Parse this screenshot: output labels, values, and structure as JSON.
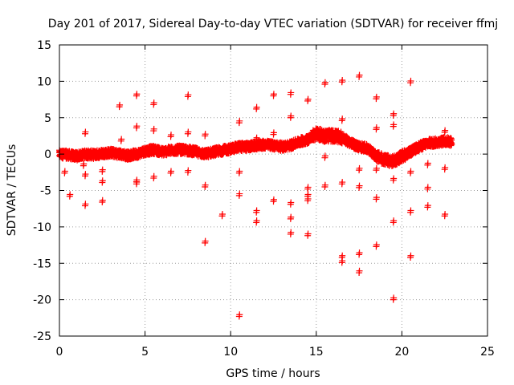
{
  "chart_data": {
    "type": "scatter",
    "title": "Day 201 of 2017, Sidereal Day-to-day VTEC variation (SDTVAR) for receiver ffmj",
    "xlabel": "GPS time / hours",
    "ylabel": "SDTVAR / TECUs",
    "xlim": [
      0,
      25
    ],
    "ylim": [
      -25,
      15
    ],
    "xticks": [
      0,
      5,
      10,
      15,
      20,
      25
    ],
    "yticks": [
      15,
      10,
      5,
      0,
      -5,
      -10,
      -15,
      -20,
      -25
    ],
    "grid": true,
    "marker": "plus",
    "color": "#ff0000",
    "series": [
      {
        "name": "SDTVAR",
        "trend": [
          [
            0.0,
            0.0
          ],
          [
            0.5,
            -0.1
          ],
          [
            1.0,
            -0.3
          ],
          [
            1.5,
            0.0
          ],
          [
            2.0,
            -0.1
          ],
          [
            2.5,
            0.1
          ],
          [
            3.0,
            0.2
          ],
          [
            3.5,
            0.0
          ],
          [
            4.0,
            -0.2
          ],
          [
            4.5,
            0.0
          ],
          [
            5.0,
            0.4
          ],
          [
            5.5,
            0.6
          ],
          [
            6.0,
            0.3
          ],
          [
            6.5,
            0.5
          ],
          [
            7.0,
            0.6
          ],
          [
            7.5,
            0.5
          ],
          [
            8.0,
            0.3
          ],
          [
            8.5,
            0.0
          ],
          [
            9.0,
            0.3
          ],
          [
            9.5,
            0.5
          ],
          [
            10.0,
            0.7
          ],
          [
            10.5,
            1.0
          ],
          [
            11.0,
            1.0
          ],
          [
            11.5,
            1.2
          ],
          [
            12.0,
            1.3
          ],
          [
            12.5,
            1.2
          ],
          [
            13.0,
            1.0
          ],
          [
            13.5,
            1.2
          ],
          [
            14.0,
            1.7
          ],
          [
            14.5,
            2.0
          ],
          [
            15.0,
            2.8
          ],
          [
            15.5,
            2.5
          ],
          [
            16.0,
            2.5
          ],
          [
            16.5,
            2.3
          ],
          [
            17.0,
            1.5
          ],
          [
            17.5,
            1.0
          ],
          [
            18.0,
            0.8
          ],
          [
            18.5,
            -0.3
          ],
          [
            19.0,
            -0.8
          ],
          [
            19.5,
            -1.0
          ],
          [
            20.0,
            -0.3
          ],
          [
            20.5,
            0.3
          ],
          [
            21.0,
            1.0
          ],
          [
            21.5,
            1.5
          ],
          [
            22.0,
            1.6
          ],
          [
            22.5,
            1.8
          ],
          [
            22.9,
            1.7
          ]
        ],
        "outliers": [
          [
            0.3,
            -2.6
          ],
          [
            0.6,
            -5.8
          ],
          [
            1.4,
            -1.6
          ],
          [
            1.5,
            -3.0
          ],
          [
            1.5,
            -7.1
          ],
          [
            1.5,
            2.8
          ],
          [
            2.5,
            -6.6
          ],
          [
            2.5,
            -2.4
          ],
          [
            2.5,
            -3.9
          ],
          [
            3.5,
            6.5
          ],
          [
            3.6,
            1.8
          ],
          [
            4.5,
            8.0
          ],
          [
            4.5,
            3.6
          ],
          [
            4.5,
            -3.8
          ],
          [
            4.5,
            -4.1
          ],
          [
            5.5,
            6.8
          ],
          [
            5.5,
            3.2
          ],
          [
            5.5,
            -3.3
          ],
          [
            6.5,
            2.4
          ],
          [
            6.5,
            -2.6
          ],
          [
            7.5,
            7.9
          ],
          [
            7.5,
            2.8
          ],
          [
            7.5,
            -2.5
          ],
          [
            8.5,
            2.5
          ],
          [
            8.5,
            -4.5
          ],
          [
            8.5,
            -12.2
          ],
          [
            9.5,
            -8.5
          ],
          [
            10.5,
            -22.3
          ],
          [
            10.5,
            -5.7
          ],
          [
            10.5,
            -2.6
          ],
          [
            10.5,
            4.3
          ],
          [
            11.5,
            6.2
          ],
          [
            11.5,
            2.0
          ],
          [
            11.5,
            -8.0
          ],
          [
            11.5,
            -9.4
          ],
          [
            12.5,
            8.0
          ],
          [
            12.5,
            2.7
          ],
          [
            12.5,
            -6.5
          ],
          [
            13.5,
            8.2
          ],
          [
            13.5,
            5.0
          ],
          [
            13.5,
            -6.9
          ],
          [
            13.5,
            -8.9
          ],
          [
            13.5,
            -11.0
          ],
          [
            14.5,
            7.3
          ],
          [
            14.5,
            -4.8
          ],
          [
            14.5,
            -5.8
          ],
          [
            14.5,
            -6.4
          ],
          [
            14.5,
            -11.2
          ],
          [
            15.5,
            9.6
          ],
          [
            15.5,
            -0.5
          ],
          [
            15.5,
            -4.5
          ],
          [
            16.5,
            9.9
          ],
          [
            16.5,
            4.6
          ],
          [
            16.5,
            -4.1
          ],
          [
            16.5,
            -14.2
          ],
          [
            16.5,
            -14.9
          ],
          [
            17.5,
            10.6
          ],
          [
            17.5,
            -2.2
          ],
          [
            17.5,
            -4.6
          ],
          [
            17.5,
            -13.8
          ],
          [
            17.5,
            -16.3
          ],
          [
            18.5,
            7.6
          ],
          [
            18.5,
            3.4
          ],
          [
            18.5,
            -2.2
          ],
          [
            18.5,
            -6.2
          ],
          [
            18.5,
            -12.7
          ],
          [
            19.5,
            5.3
          ],
          [
            19.5,
            3.8
          ],
          [
            19.5,
            -3.6
          ],
          [
            19.5,
            -9.4
          ],
          [
            19.5,
            -20.0
          ],
          [
            20.5,
            9.8
          ],
          [
            20.5,
            -2.6
          ],
          [
            20.5,
            -8.0
          ],
          [
            20.5,
            -14.2
          ],
          [
            21.5,
            -4.8
          ],
          [
            21.5,
            -7.3
          ],
          [
            21.5,
            -1.5
          ],
          [
            22.5,
            3.0
          ],
          [
            22.5,
            -2.1
          ],
          [
            22.5,
            -8.5
          ]
        ]
      }
    ]
  }
}
